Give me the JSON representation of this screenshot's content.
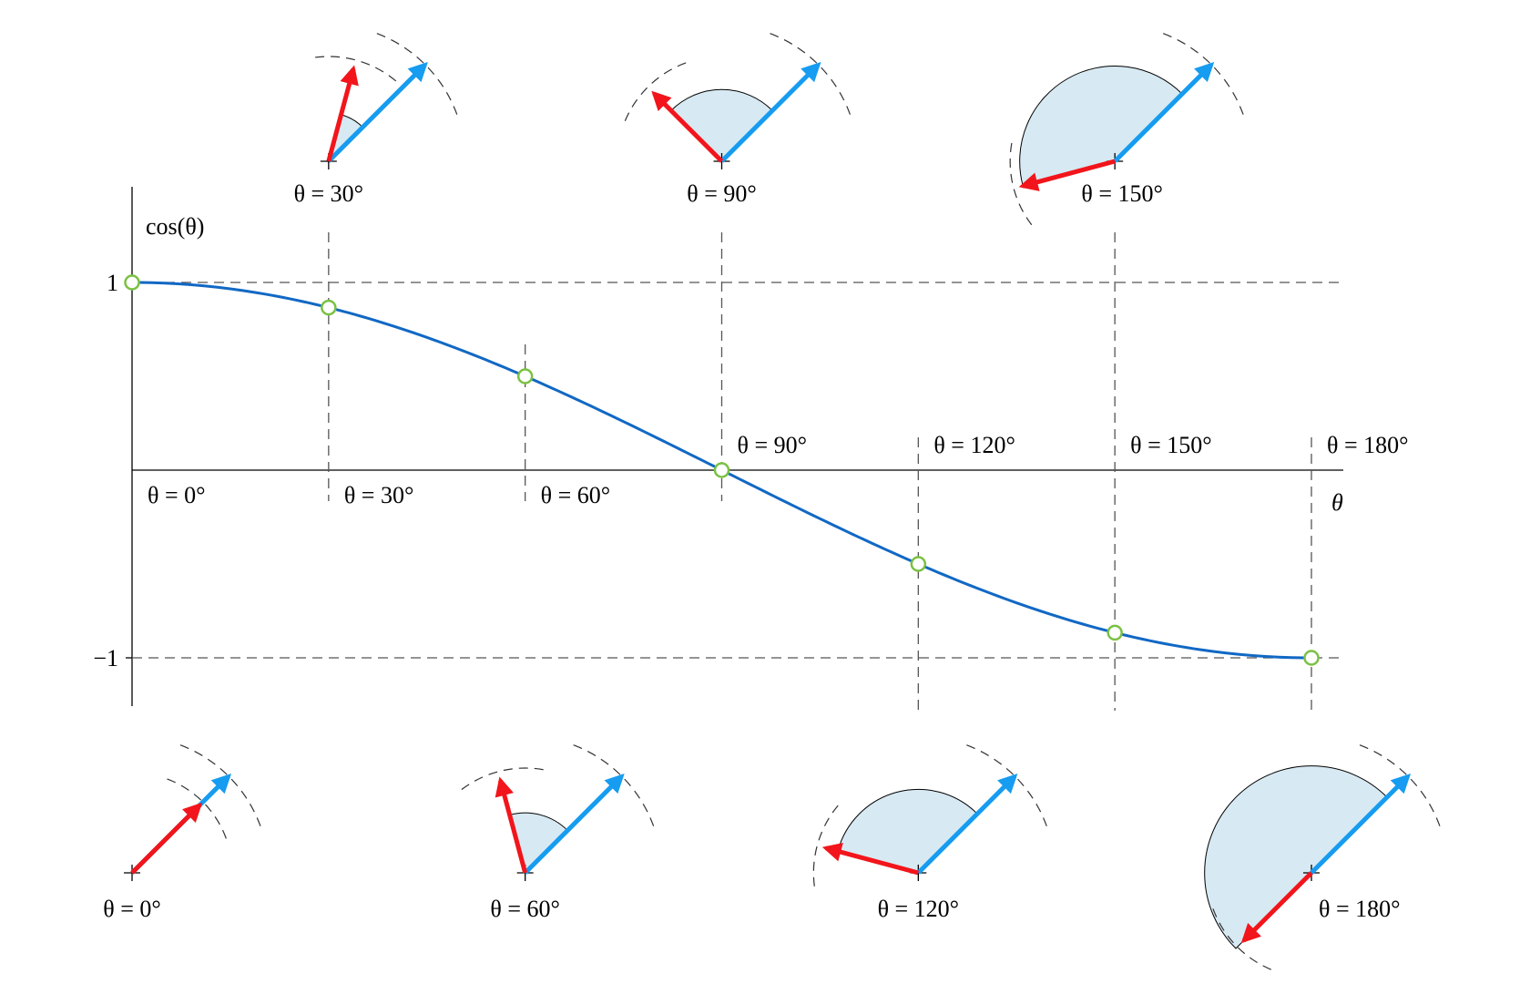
{
  "colors": {
    "curve": "#1168c4",
    "reference_vector": "#169cf0",
    "rotated_vector": "#f2151b",
    "angle_fill": "#d7e9f2",
    "sample_marker": "#7ac143",
    "guide": "#555555"
  },
  "chart_data": {
    "type": "line",
    "title": "",
    "xlabel": "θ",
    "ylabel": "cos(θ)",
    "xlim": [
      0,
      180
    ],
    "ylim": [
      -1,
      1
    ],
    "yticks": [
      {
        "value": 1,
        "label": "1"
      },
      {
        "value": -1,
        "label": "−1"
      }
    ],
    "series": [
      {
        "name": "cos(θ)",
        "function": "cos",
        "domain_deg": [
          0,
          180
        ]
      }
    ],
    "samples": [
      {
        "angle": 0,
        "label": "θ = 0°",
        "cos": 1.0
      },
      {
        "angle": 30,
        "label": "θ = 30°",
        "cos": 0.866
      },
      {
        "angle": 60,
        "label": "θ = 60°",
        "cos": 0.5
      },
      {
        "angle": 90,
        "label": "θ = 90°",
        "cos": 0.0
      },
      {
        "angle": 120,
        "label": "θ = 120°",
        "cos": -0.5
      },
      {
        "angle": 150,
        "label": "θ = 150°",
        "cos": -0.866
      },
      {
        "angle": 180,
        "label": "θ = 180°",
        "cos": -1.0
      }
    ],
    "vector_diagrams": [
      {
        "angle": 30,
        "label": "θ = 30°",
        "row": "top"
      },
      {
        "angle": 90,
        "label": "θ = 90°",
        "row": "top"
      },
      {
        "angle": 150,
        "label": "θ = 150°",
        "row": "top"
      },
      {
        "angle": 0,
        "label": "θ = 0°",
        "row": "bottom"
      },
      {
        "angle": 60,
        "label": "θ = 60°",
        "row": "bottom"
      },
      {
        "angle": 120,
        "label": "θ = 120°",
        "row": "bottom"
      },
      {
        "angle": 180,
        "label": "θ = 180°",
        "row": "bottom"
      }
    ]
  }
}
